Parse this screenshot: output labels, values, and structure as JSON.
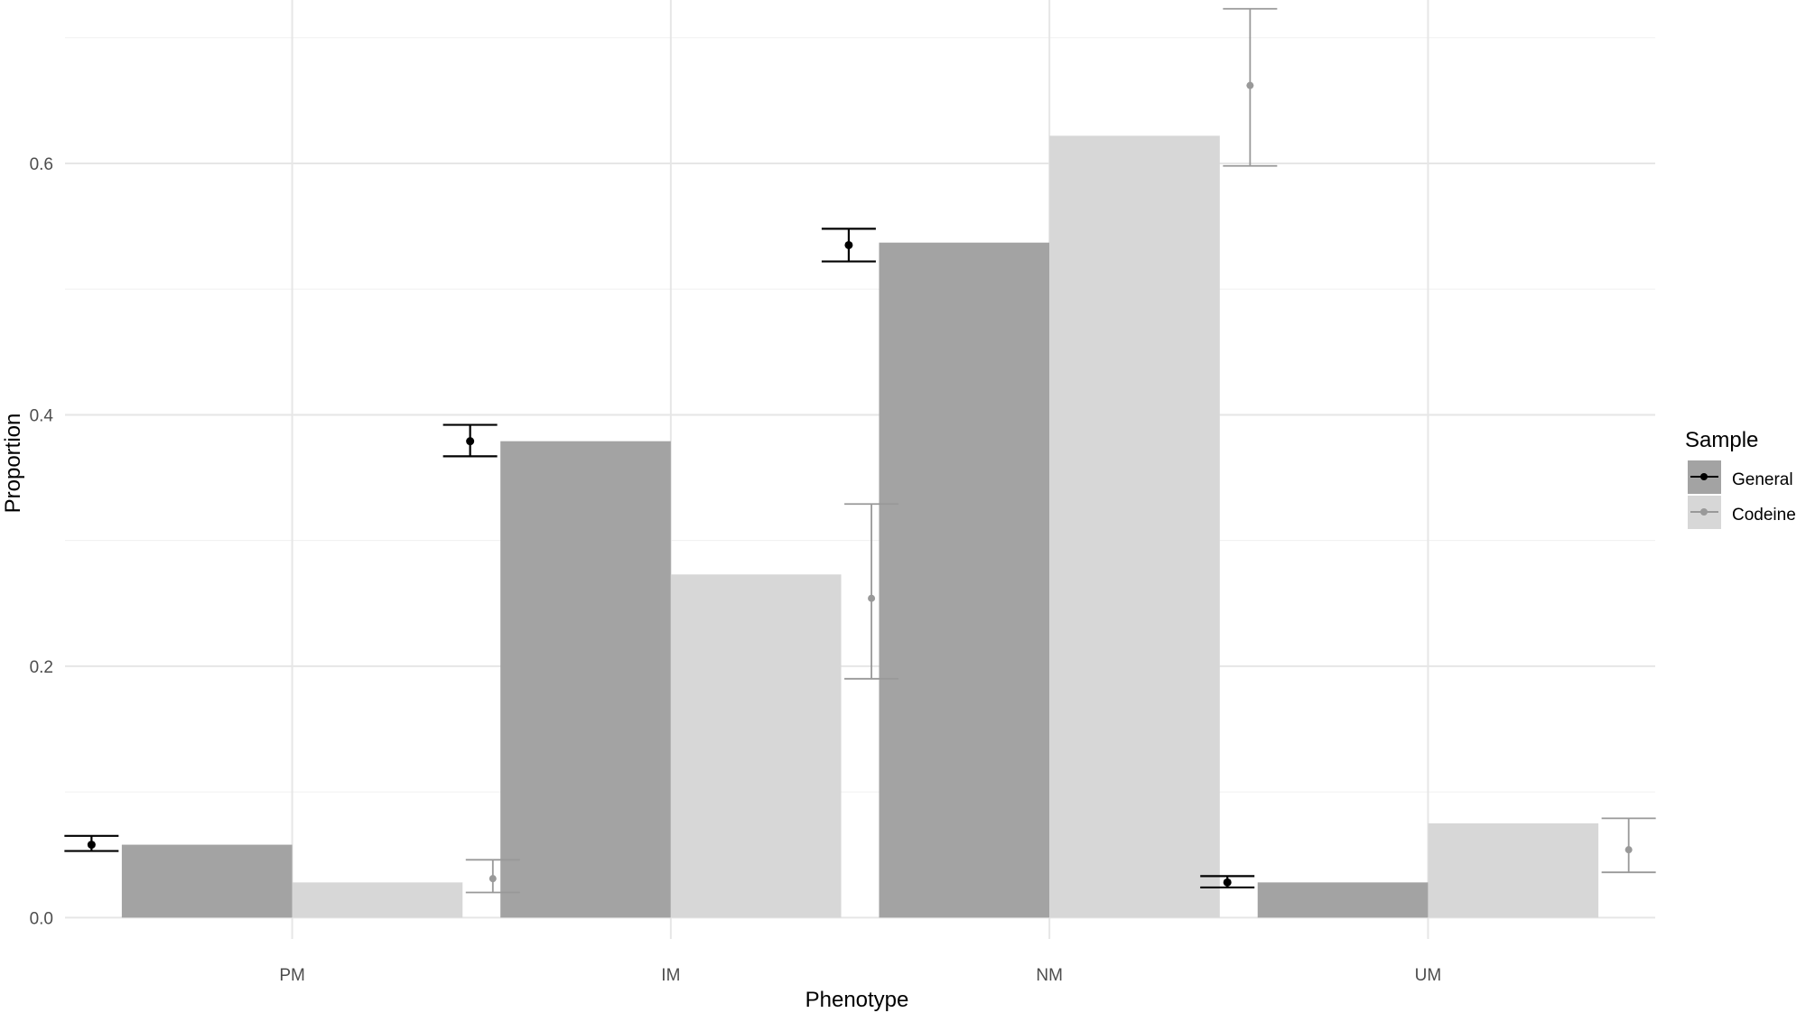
{
  "chart_data": {
    "type": "bar",
    "xlabel": "Phenotype",
    "ylabel": "Proportion",
    "categories": [
      "PM",
      "IM",
      "NM",
      "UM"
    ],
    "ylim": [
      -0.017,
      0.73
    ],
    "yticks": [
      0.0,
      0.2,
      0.4,
      0.6
    ],
    "ytick_labels": [
      "0.0",
      "0.2",
      "0.4",
      "0.6"
    ],
    "grid": true,
    "legend": {
      "title": "Sample",
      "position": "right"
    },
    "series": [
      {
        "name": "General",
        "bar_color": "#a3a3a3",
        "point_color": "#000000",
        "values": [
          0.058,
          0.379,
          0.537,
          0.028
        ],
        "point": [
          0.058,
          0.379,
          0.535,
          0.028
        ],
        "ci_low": [
          0.053,
          0.367,
          0.522,
          0.024
        ],
        "ci_high": [
          0.065,
          0.392,
          0.548,
          0.033
        ]
      },
      {
        "name": "Codeine",
        "bar_color": "#d7d7d7",
        "point_color": "#999999",
        "values": [
          0.028,
          0.273,
          0.622,
          0.075
        ],
        "point": [
          0.031,
          0.254,
          0.662,
          0.054
        ],
        "ci_low": [
          0.02,
          0.19,
          0.598,
          0.036
        ],
        "ci_high": [
          0.046,
          0.329,
          0.723,
          0.079
        ]
      }
    ]
  }
}
